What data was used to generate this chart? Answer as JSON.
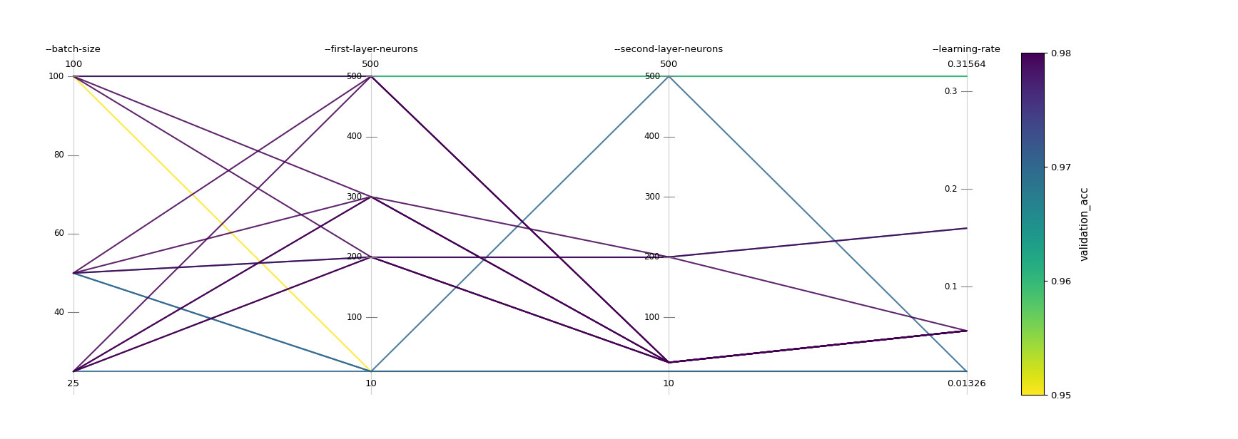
{
  "axes_labels": [
    "--batch-size",
    "--first-layer-neurons",
    "--second-layer-neurons",
    "--learning-rate"
  ],
  "axes_ranges": [
    [
      25,
      100
    ],
    [
      10,
      500
    ],
    [
      10,
      500
    ],
    [
      0.01326,
      0.31564
    ]
  ],
  "axes_max_labels": [
    "100",
    "500",
    "500",
    "0.31564"
  ],
  "axes_min_labels": [
    "25",
    "10",
    "10",
    "0.01326"
  ],
  "axes_ticks": [
    [
      40,
      60,
      80,
      100
    ],
    [
      100,
      200,
      300,
      400,
      500
    ],
    [
      100,
      200,
      300,
      400,
      500
    ],
    [
      0.1,
      0.2,
      0.3
    ]
  ],
  "colorbar_label": "validation_acc",
  "colorbar_ticks": [
    0.95,
    0.96,
    0.97,
    0.98
  ],
  "color_range": [
    0.95,
    0.98
  ],
  "colormap": "viridis_r",
  "trials": [
    [
      100,
      500,
      500,
      0.31564,
      0.96
    ],
    [
      100,
      500,
      500,
      0.31564,
      0.96
    ],
    [
      100,
      10,
      10,
      0.01326,
      0.95
    ],
    [
      50,
      10,
      500,
      0.01326,
      0.97
    ],
    [
      50,
      10,
      10,
      0.01326,
      0.97
    ],
    [
      25,
      10,
      10,
      0.01326,
      0.97
    ],
    [
      100,
      500,
      25,
      0.055,
      0.98
    ],
    [
      100,
      300,
      25,
      0.055,
      0.98
    ],
    [
      100,
      200,
      25,
      0.055,
      0.98
    ],
    [
      50,
      500,
      25,
      0.055,
      0.98
    ],
    [
      50,
      300,
      25,
      0.055,
      0.98
    ],
    [
      50,
      200,
      25,
      0.055,
      0.98
    ],
    [
      25,
      500,
      25,
      0.055,
      0.98
    ],
    [
      25,
      300,
      25,
      0.055,
      0.98
    ],
    [
      25,
      200,
      25,
      0.055,
      0.98
    ],
    [
      25,
      200,
      200,
      0.16,
      0.98
    ],
    [
      50,
      200,
      200,
      0.16,
      0.97
    ],
    [
      25,
      300,
      200,
      0.055,
      0.98
    ]
  ],
  "background_color": "#ffffff",
  "line_alpha": 0.85,
  "line_width": 1.5,
  "figure_size": [
    17.35,
    6.16
  ],
  "dpi": 100
}
